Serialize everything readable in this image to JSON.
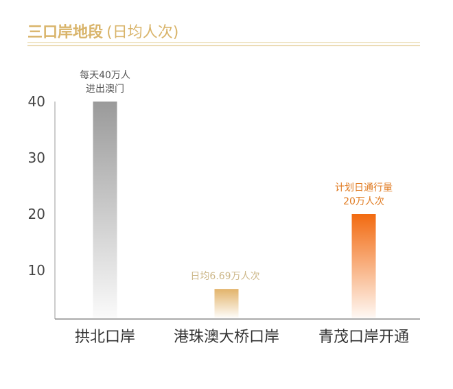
{
  "chart_data": {
    "type": "bar",
    "title": "三口岸地段",
    "subtitle": "(日均人次)",
    "xlabel": "",
    "ylabel": "",
    "ylim": [
      0,
      40
    ],
    "yticks": [
      "10",
      "20",
      "30",
      "40"
    ],
    "grid": false,
    "categories": [
      "拱北口岸",
      "港珠澳大桥口岸",
      "青茂口岸开通"
    ],
    "values": [
      40,
      6.69,
      20
    ],
    "annotations": [
      [
        "每天40万人",
        "进出澳门"
      ],
      [
        "日均6.69万人次"
      ],
      [
        "计划日通行量",
        "20万人次"
      ]
    ],
    "colors": {
      "title": "#d9b46a",
      "rule": "#e8d6a8",
      "bar_tops": [
        "#9a9a9a",
        "#e2b36a",
        "#f26a10"
      ],
      "annotation_colors": [
        "#555555",
        "#cdb88a",
        "#e07a20"
      ]
    }
  }
}
